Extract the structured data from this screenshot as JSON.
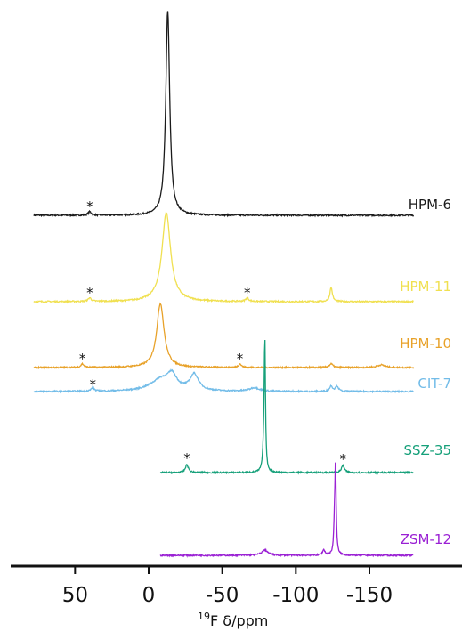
{
  "chart_data": {
    "type": "line",
    "xlabel_sup": "19",
    "xlabel_main": "F   δ/ppm",
    "xlim": [
      78,
      -180
    ],
    "x_reversed": true,
    "x_ticks": [
      50,
      0,
      -50,
      -100,
      -150
    ],
    "x_tick_labels": [
      "50",
      "0",
      "-50",
      "-100",
      "-150"
    ],
    "spinning_sideband_marker": "*",
    "series": [
      {
        "name": "HPM-6",
        "color": "#1a1a1a",
        "x_start": 78,
        "x_end": -180,
        "baseline_index": 0,
        "peaks": [
          {
            "x": -13,
            "height": 230,
            "width": 1.6
          }
        ],
        "sidebands": [
          {
            "x": 40,
            "height": 4
          }
        ]
      },
      {
        "name": "HPM-11",
        "color": "#f0e050",
        "x_start": 78,
        "x_end": -180,
        "baseline_index": 1,
        "peaks": [
          {
            "x": -12,
            "height": 100,
            "width": 3.5
          },
          {
            "x": -124,
            "height": 16,
            "width": 1.0
          }
        ],
        "sidebands": [
          {
            "x": 40,
            "height": 4
          },
          {
            "x": -67,
            "height": 4
          }
        ]
      },
      {
        "name": "HPM-10",
        "color": "#e8a22a",
        "x_start": 78,
        "x_end": -180,
        "baseline_index": 2,
        "peaks": [
          {
            "x": -8,
            "height": 72,
            "width": 3.0
          },
          {
            "x": -124,
            "height": 4,
            "width": 1.5
          },
          {
            "x": -158,
            "height": 3,
            "width": 3
          }
        ],
        "sidebands": [
          {
            "x": 45,
            "height": 4
          },
          {
            "x": -62,
            "height": 4
          }
        ]
      },
      {
        "name": "CIT-7",
        "color": "#72bce8",
        "x_start": 78,
        "x_end": -180,
        "baseline_index": 3,
        "peaks": [
          {
            "x": -9,
            "height": 14,
            "width": 9
          },
          {
            "x": -16,
            "height": 14,
            "width": 3.5
          },
          {
            "x": -31,
            "height": 18,
            "width": 3.5
          },
          {
            "x": -72,
            "height": 4,
            "width": 4
          },
          {
            "x": -124,
            "height": 6,
            "width": 1.2
          },
          {
            "x": -128,
            "height": 6,
            "width": 1.2
          }
        ],
        "sidebands": [
          {
            "x": 38,
            "height": 4
          }
        ]
      },
      {
        "name": "SSZ-35",
        "color": "#16a07a",
        "x_start": -8,
        "x_end": -180,
        "baseline_index": 4,
        "peaks": [
          {
            "x": -79,
            "height": 126,
            "width": 0.45
          },
          {
            "x": -78.5,
            "height": 40,
            "width": 0.8
          }
        ],
        "sidebands": [
          {
            "x": -26,
            "height": 9
          },
          {
            "x": -132,
            "height": 8
          }
        ]
      },
      {
        "name": "ZSM-12",
        "color": "#9a20d4",
        "x_start": -8,
        "x_end": -180,
        "baseline_index": 5,
        "peaks": [
          {
            "x": -127,
            "height": 96,
            "width": 0.5
          },
          {
            "x": -126.3,
            "height": 30,
            "width": 0.6
          },
          {
            "x": -79,
            "height": 6,
            "width": 2.5
          },
          {
            "x": -119,
            "height": 6,
            "width": 1
          }
        ],
        "sidebands": []
      }
    ]
  }
}
